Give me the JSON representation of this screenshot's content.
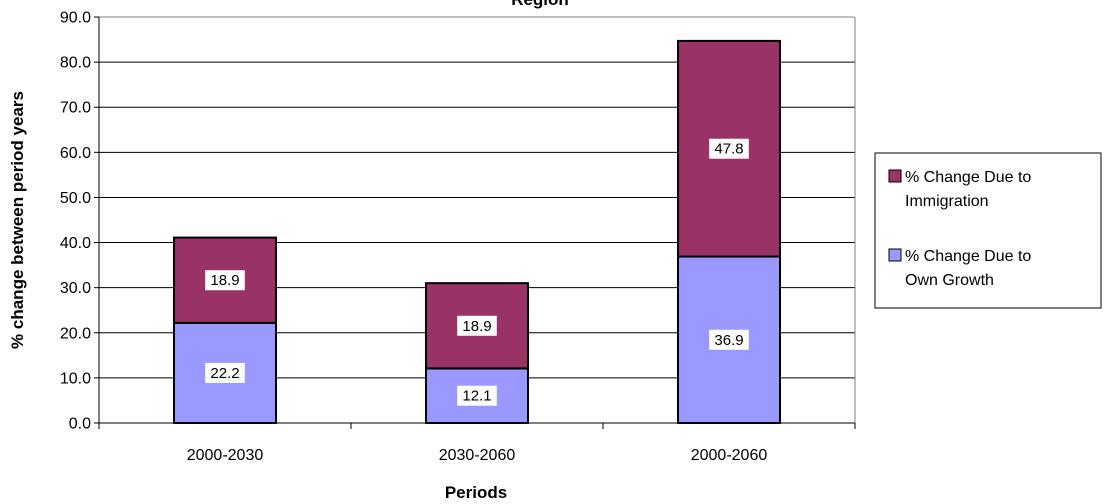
{
  "chart_data": {
    "type": "bar",
    "stacked": true,
    "title": "Region",
    "xlabel": "Periods",
    "ylabel": "% change between period years",
    "categories": [
      "2000-2030",
      "2030-2060",
      "2000-2060"
    ],
    "series": [
      {
        "name": "% Change Due to Own Growth",
        "values": [
          22.2,
          12.1,
          36.9
        ],
        "color": "#9999ff"
      },
      {
        "name": "% Change Due to Immigration",
        "values": [
          18.9,
          18.9,
          47.8
        ],
        "color": "#993366"
      }
    ],
    "ylim": [
      0,
      90
    ],
    "ytick_step": 10,
    "ytick_labels": [
      "0.0",
      "10.0",
      "20.0",
      "30.0",
      "40.0",
      "50.0",
      "60.0",
      "70.0",
      "80.0",
      "90.0"
    ],
    "grid": true,
    "legend": {
      "placement": "right",
      "entries": [
        {
          "series": 1,
          "lines": [
            "% Change Due to",
            "Immigration"
          ]
        },
        {
          "series": 0,
          "lines": [
            "% Change Due to",
            "Own Growth"
          ]
        }
      ]
    }
  }
}
